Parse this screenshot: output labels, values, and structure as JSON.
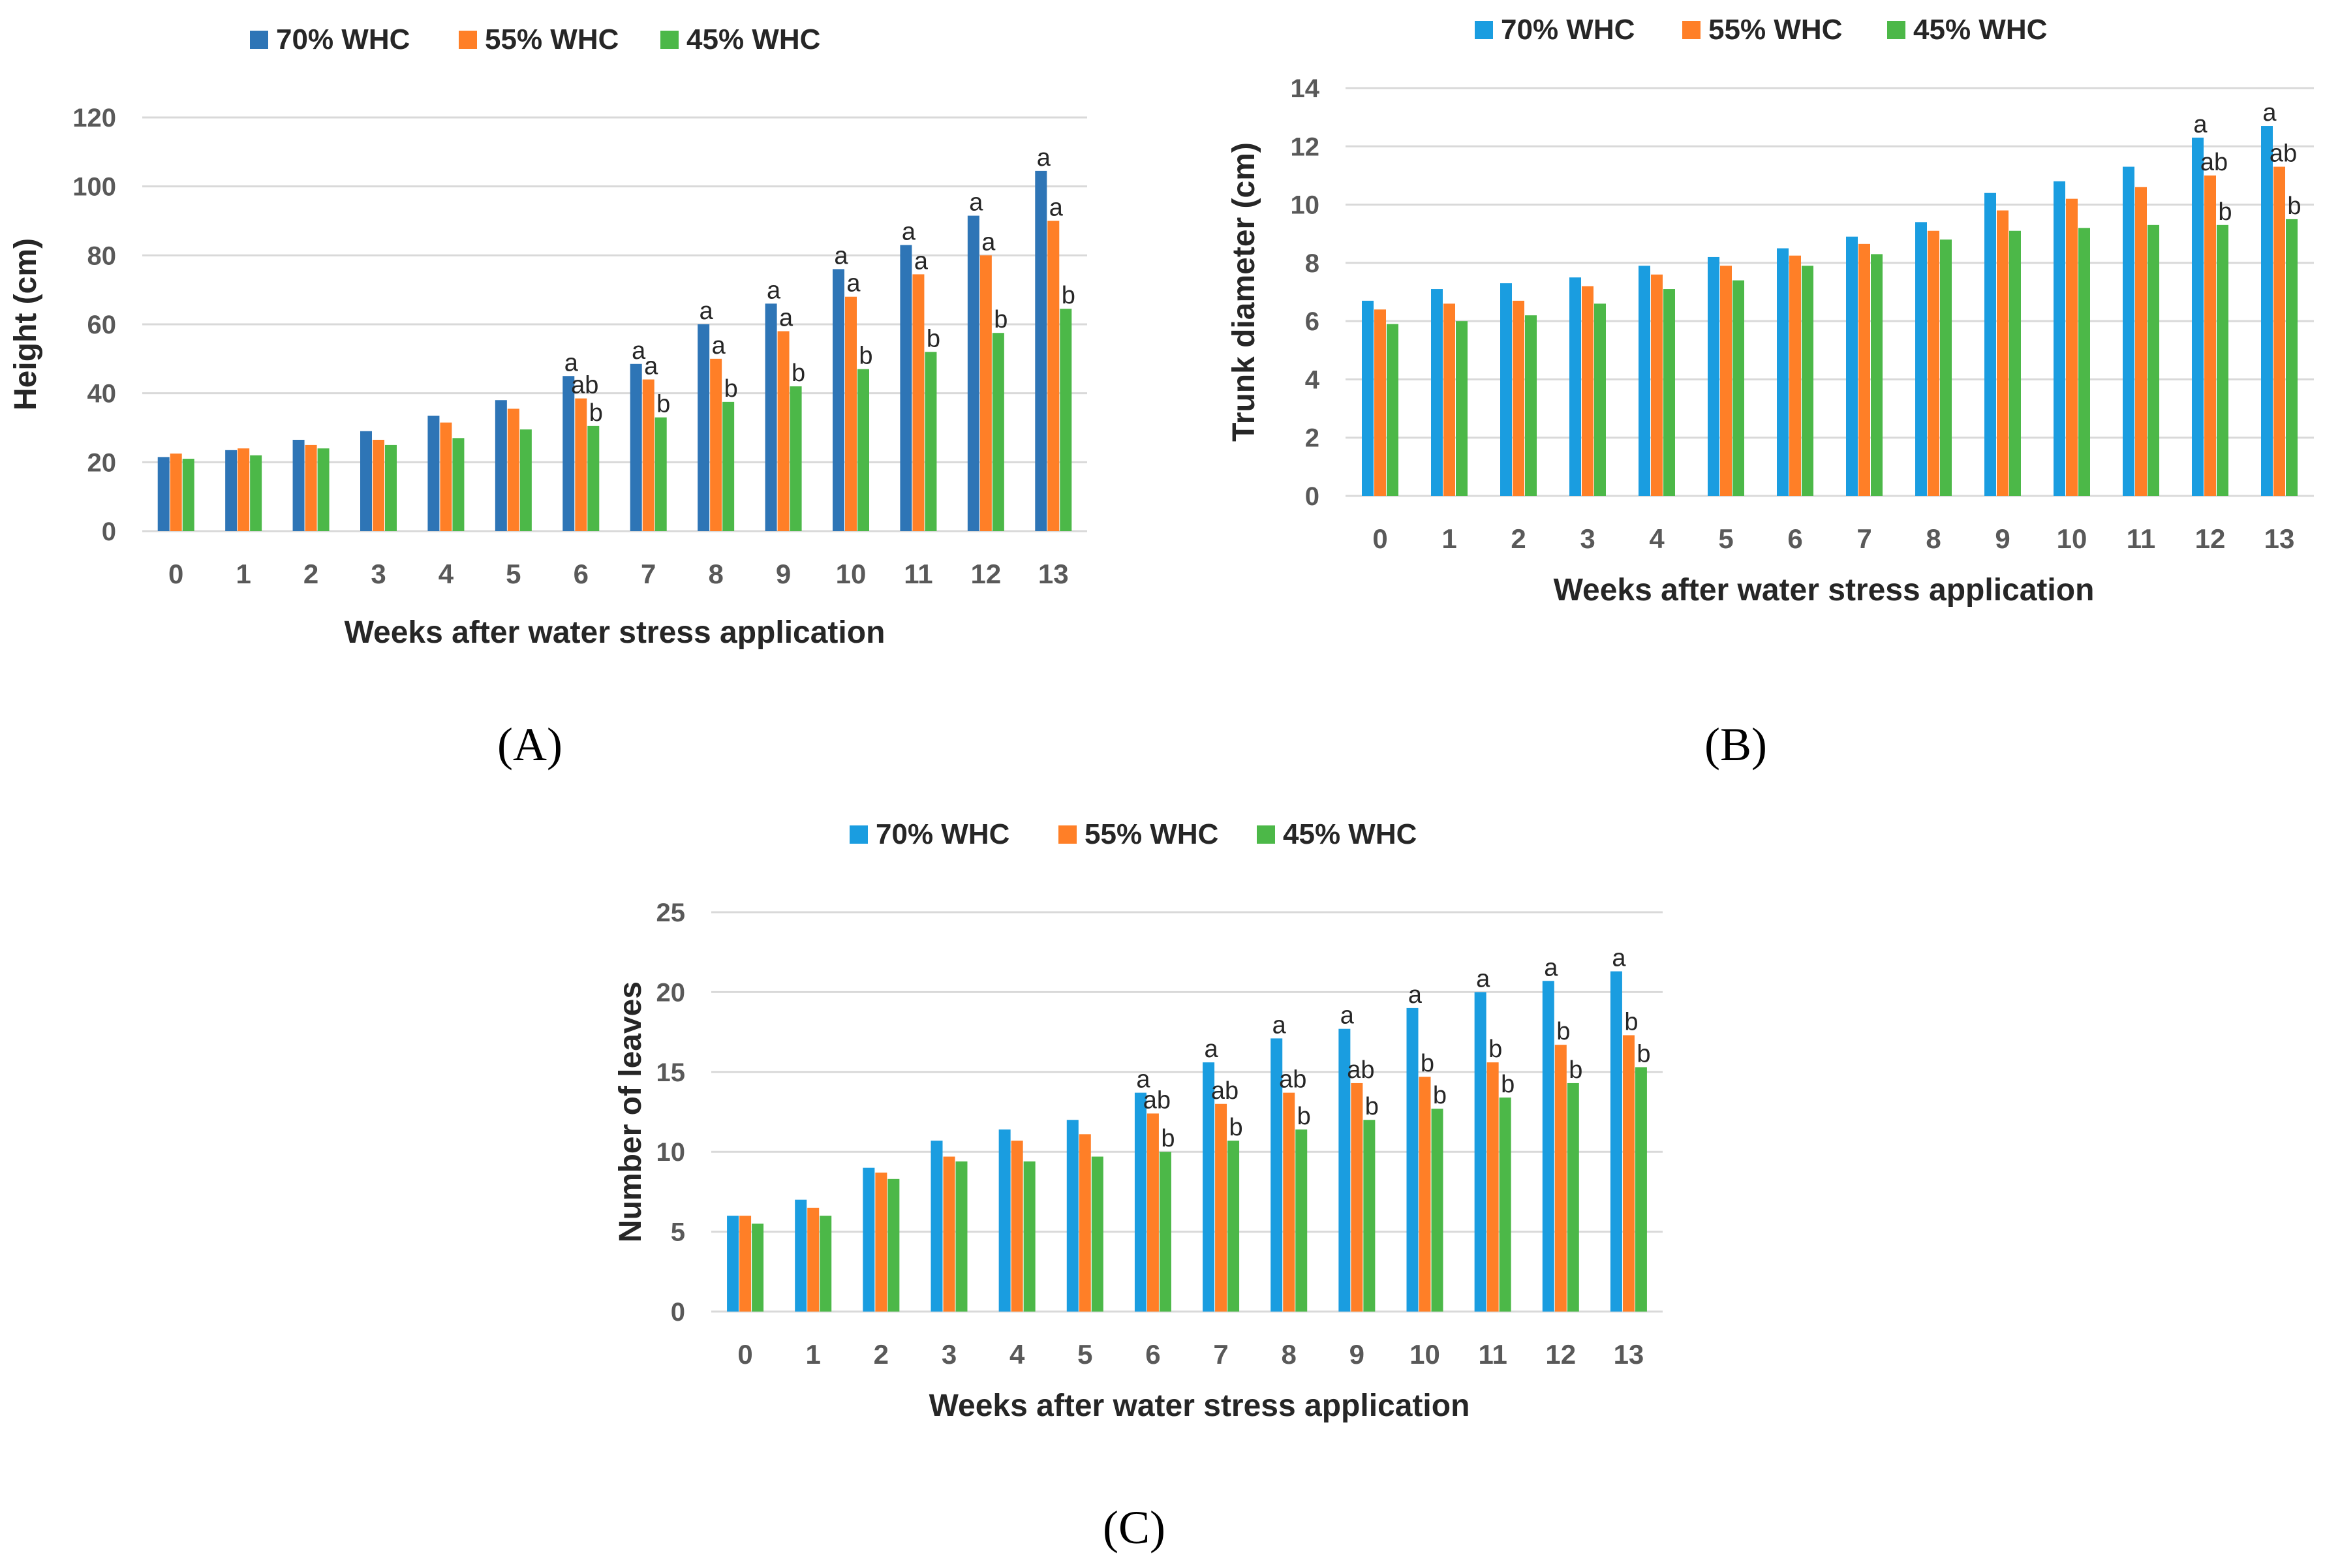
{
  "colors": {
    "grid": "#d9d9d9",
    "tick_text": "#595959",
    "title_text": "#262626"
  },
  "chart_data": [
    {
      "id": "A",
      "panel_label": "(A)",
      "type": "bar",
      "title": "",
      "xlabel": "Weeks after water stress  application",
      "ylabel": "Height (cm)",
      "ylim": [
        0,
        120
      ],
      "yticks": [
        0,
        20,
        40,
        60,
        80,
        100,
        120
      ],
      "grid": true,
      "legend_position": "top",
      "categories": [
        "0",
        "1",
        "2",
        "3",
        "4",
        "5",
        "6",
        "7",
        "8",
        "9",
        "10",
        "11",
        "12",
        "13"
      ],
      "series": [
        {
          "name": "70% WHC",
          "color": "#2e75b6",
          "values": [
            21.5,
            23.5,
            26.5,
            29,
            33.5,
            38,
            45,
            48.5,
            60,
            66,
            76,
            83,
            91.5,
            104.5
          ],
          "labels": [
            "",
            "",
            "",
            "",
            "",
            "",
            "a",
            "a",
            "a",
            "a",
            "a",
            "a",
            "a",
            "a"
          ]
        },
        {
          "name": "55% WHC",
          "color": "#ff7f27",
          "values": [
            22.5,
            24,
            25,
            26.5,
            31.5,
            35.5,
            38.5,
            44,
            50,
            58,
            68,
            74.5,
            80,
            90
          ],
          "labels": [
            "",
            "",
            "",
            "",
            "",
            "",
            "ab",
            "a",
            "a",
            "a",
            "a",
            "a",
            "a",
            "a"
          ]
        },
        {
          "name": "45% WHC",
          "color": "#4cb848",
          "values": [
            21,
            22,
            24,
            25,
            27,
            29.5,
            30.5,
            33,
            37.5,
            42,
            47,
            52,
            57.5,
            64.5
          ],
          "labels": [
            "",
            "",
            "",
            "",
            "",
            "",
            "b",
            "b",
            "b",
            "b",
            "b",
            "b",
            "b",
            "b"
          ]
        }
      ]
    },
    {
      "id": "B",
      "panel_label": "(B)",
      "type": "bar",
      "title": "",
      "xlabel": "Weeks after water stress application",
      "ylabel": "Trunk diameter (cm)",
      "ylim": [
        0,
        14
      ],
      "yticks": [
        0,
        2,
        4,
        6,
        8,
        10,
        12,
        14
      ],
      "grid": true,
      "legend_position": "top",
      "categories": [
        "0",
        "1",
        "2",
        "3",
        "4",
        "5",
        "6",
        "7",
        "8",
        "9",
        "10",
        "11",
        "12",
        "13"
      ],
      "series": [
        {
          "name": "70% WHC",
          "color": "#1a9de0",
          "values": [
            6.7,
            7.1,
            7.3,
            7.5,
            7.9,
            8.2,
            8.5,
            8.9,
            9.4,
            10.4,
            10.8,
            11.3,
            12.3,
            12.7
          ],
          "labels": [
            "",
            "",
            "",
            "",
            "",
            "",
            "",
            "",
            "",
            "",
            "",
            "",
            "a",
            "a"
          ]
        },
        {
          "name": "55% WHC",
          "color": "#ff7f27",
          "values": [
            6.4,
            6.6,
            6.7,
            7.2,
            7.6,
            7.9,
            8.25,
            8.65,
            9.1,
            9.8,
            10.2,
            10.6,
            11.0,
            11.3
          ],
          "labels": [
            "",
            "",
            "",
            "",
            "",
            "",
            "",
            "",
            "",
            "",
            "",
            "",
            "ab",
            "ab"
          ]
        },
        {
          "name": "45% WHC",
          "color": "#4cb848",
          "values": [
            5.9,
            6.0,
            6.2,
            6.6,
            7.1,
            7.4,
            7.9,
            8.3,
            8.8,
            9.1,
            9.2,
            9.3,
            9.3,
            9.5
          ],
          "labels": [
            "",
            "",
            "",
            "",
            "",
            "",
            "",
            "",
            "",
            "",
            "",
            "",
            "b",
            "b"
          ]
        }
      ]
    },
    {
      "id": "C",
      "panel_label": "(C)",
      "type": "bar",
      "title": "",
      "xlabel": "Weeks after water stress application",
      "ylabel": "Number of leaves",
      "ylim": [
        0,
        25
      ],
      "yticks": [
        0,
        5,
        10,
        15,
        20,
        25
      ],
      "grid": true,
      "legend_position": "top",
      "categories": [
        "0",
        "1",
        "2",
        "3",
        "4",
        "5",
        "6",
        "7",
        "8",
        "9",
        "10",
        "11",
        "12",
        "13"
      ],
      "series": [
        {
          "name": "70% WHC",
          "color": "#1a9de0",
          "values": [
            6,
            7,
            9,
            10.7,
            11.4,
            12,
            13.7,
            15.6,
            17.1,
            17.7,
            19,
            20,
            20.7,
            21.3
          ],
          "labels": [
            "",
            "",
            "",
            "",
            "",
            "",
            "a",
            "a",
            "a",
            "a",
            "a",
            "a",
            "a",
            "a"
          ]
        },
        {
          "name": "55% WHC",
          "color": "#ff7f27",
          "values": [
            6,
            6.5,
            8.7,
            9.7,
            10.7,
            11.1,
            12.4,
            13,
            13.7,
            14.3,
            14.7,
            15.6,
            16.7,
            17.3
          ],
          "labels": [
            "",
            "",
            "",
            "",
            "",
            "",
            "ab",
            "ab",
            "ab",
            "ab",
            "b",
            "b",
            "b",
            "b"
          ]
        },
        {
          "name": "45% WHC",
          "color": "#4cb848",
          "values": [
            5.5,
            6,
            8.3,
            9.4,
            9.4,
            9.7,
            10,
            10.7,
            11.4,
            12,
            12.7,
            13.4,
            14.3,
            15.3
          ],
          "labels": [
            "",
            "",
            "",
            "",
            "",
            "",
            "b",
            "b",
            "b",
            "b",
            "b",
            "b",
            "b",
            "b"
          ]
        }
      ]
    }
  ]
}
